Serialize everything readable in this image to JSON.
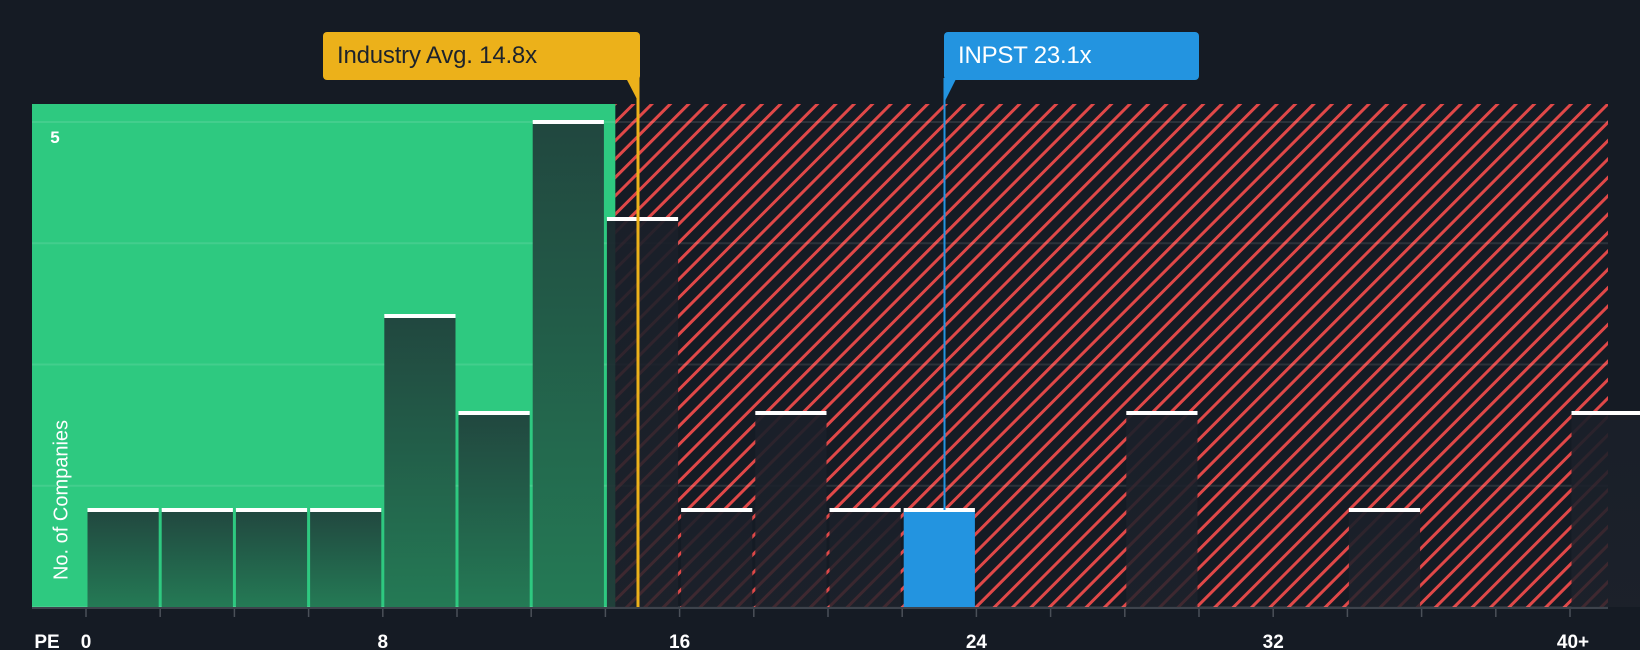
{
  "chart_data": {
    "type": "bar",
    "title": "",
    "xlabel": "PE",
    "ylabel": "No. of Companies",
    "x_ticks": [
      "0",
      "8",
      "16",
      "24",
      "32",
      "40+"
    ],
    "y_ticks": [
      "5"
    ],
    "ylim": [
      0,
      5.15
    ],
    "xlim": [
      0,
      41
    ],
    "bin_width": 2,
    "bins": [
      {
        "from": 0,
        "to": 2,
        "count": 1
      },
      {
        "from": 2,
        "to": 4,
        "count": 1
      },
      {
        "from": 4,
        "to": 6,
        "count": 1
      },
      {
        "from": 6,
        "to": 8,
        "count": 1
      },
      {
        "from": 8,
        "to": 10,
        "count": 3
      },
      {
        "from": 10,
        "to": 12,
        "count": 2
      },
      {
        "from": 12,
        "to": 14,
        "count": 5
      },
      {
        "from": 14,
        "to": 16,
        "count": 4
      },
      {
        "from": 16,
        "to": 18,
        "count": 1
      },
      {
        "from": 18,
        "to": 20,
        "count": 2
      },
      {
        "from": 20,
        "to": 22,
        "count": 1
      },
      {
        "from": 22,
        "to": 24,
        "count": 1,
        "highlight": true
      },
      {
        "from": 28,
        "to": 30,
        "count": 2
      },
      {
        "from": 34,
        "to": 36,
        "count": 1
      },
      {
        "from": 40,
        "to": 42,
        "count": 2,
        "label": "40+"
      }
    ],
    "annotations": [
      {
        "label": "Industry Avg. 14.8x",
        "value": 14.8,
        "color": "#ecb11a"
      },
      {
        "label": "INPST 23.1x",
        "value": 23.1,
        "color": "#2394e0"
      }
    ],
    "regions": [
      {
        "name": "undervalued",
        "from": 0,
        "to": 14.8,
        "color": "#2ec980"
      },
      {
        "name": "overvalued",
        "from": 14.8,
        "to": 41,
        "color": "#e04848",
        "pattern": "hatch"
      }
    ],
    "grid": true,
    "legend": "none"
  },
  "callouts": {
    "industry": "Industry Avg. 14.8x",
    "company": "INPST 23.1x"
  },
  "axis": {
    "x_label": "PE",
    "y_label": "No. of Companies",
    "y_tick_5": "5"
  },
  "colors": {
    "background": "#151b24",
    "green_region": "#2ec980",
    "green_bar_top": "#21473f",
    "green_bar_bottom": "#247a55",
    "hatch_red": "#e04848",
    "industry_yellow": "#ecb11a",
    "company_blue": "#2394e0",
    "cap_white": "#ffffff"
  }
}
